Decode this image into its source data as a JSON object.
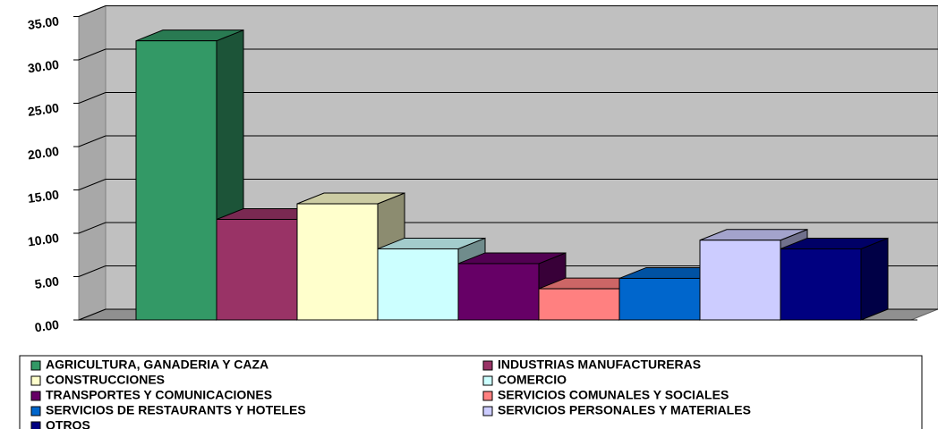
{
  "chart_data": {
    "type": "bar3d",
    "categories": [
      "AGRICULTURA, GANADERIA Y CAZA",
      "INDUSTRIAS MANUFACTURERAS",
      "CONSTRUCCIONES",
      "COMERCIO",
      "TRANSPORTES Y COMUNICACIONES",
      "SERVICIOS COMUNALES Y SOCIALES",
      "SERVICIOS DE RESTAURANTS Y HOTELES",
      "SERVICIOS PERSONALES Y MATERIALES",
      "OTROS"
    ],
    "values": [
      32.2,
      11.6,
      13.4,
      8.2,
      6.5,
      3.6,
      4.8,
      9.2,
      8.2
    ],
    "colors": [
      "#339966",
      "#993366",
      "#ffffcc",
      "#ccffff",
      "#660066",
      "#ff8080",
      "#0066cc",
      "#ccccff",
      "#000080"
    ],
    "ylim": [
      0,
      35
    ],
    "yticks": [
      {
        "value": 0,
        "label": "0.00"
      },
      {
        "value": 5,
        "label": "5.00"
      },
      {
        "value": 10,
        "label": "10.00"
      },
      {
        "value": 15,
        "label": "15.00"
      },
      {
        "value": 20,
        "label": "20.00"
      },
      {
        "value": 25,
        "label": "25.00"
      },
      {
        "value": 30,
        "label": "30.00"
      },
      {
        "value": 35,
        "label": "35.00"
      }
    ],
    "grid": true
  }
}
